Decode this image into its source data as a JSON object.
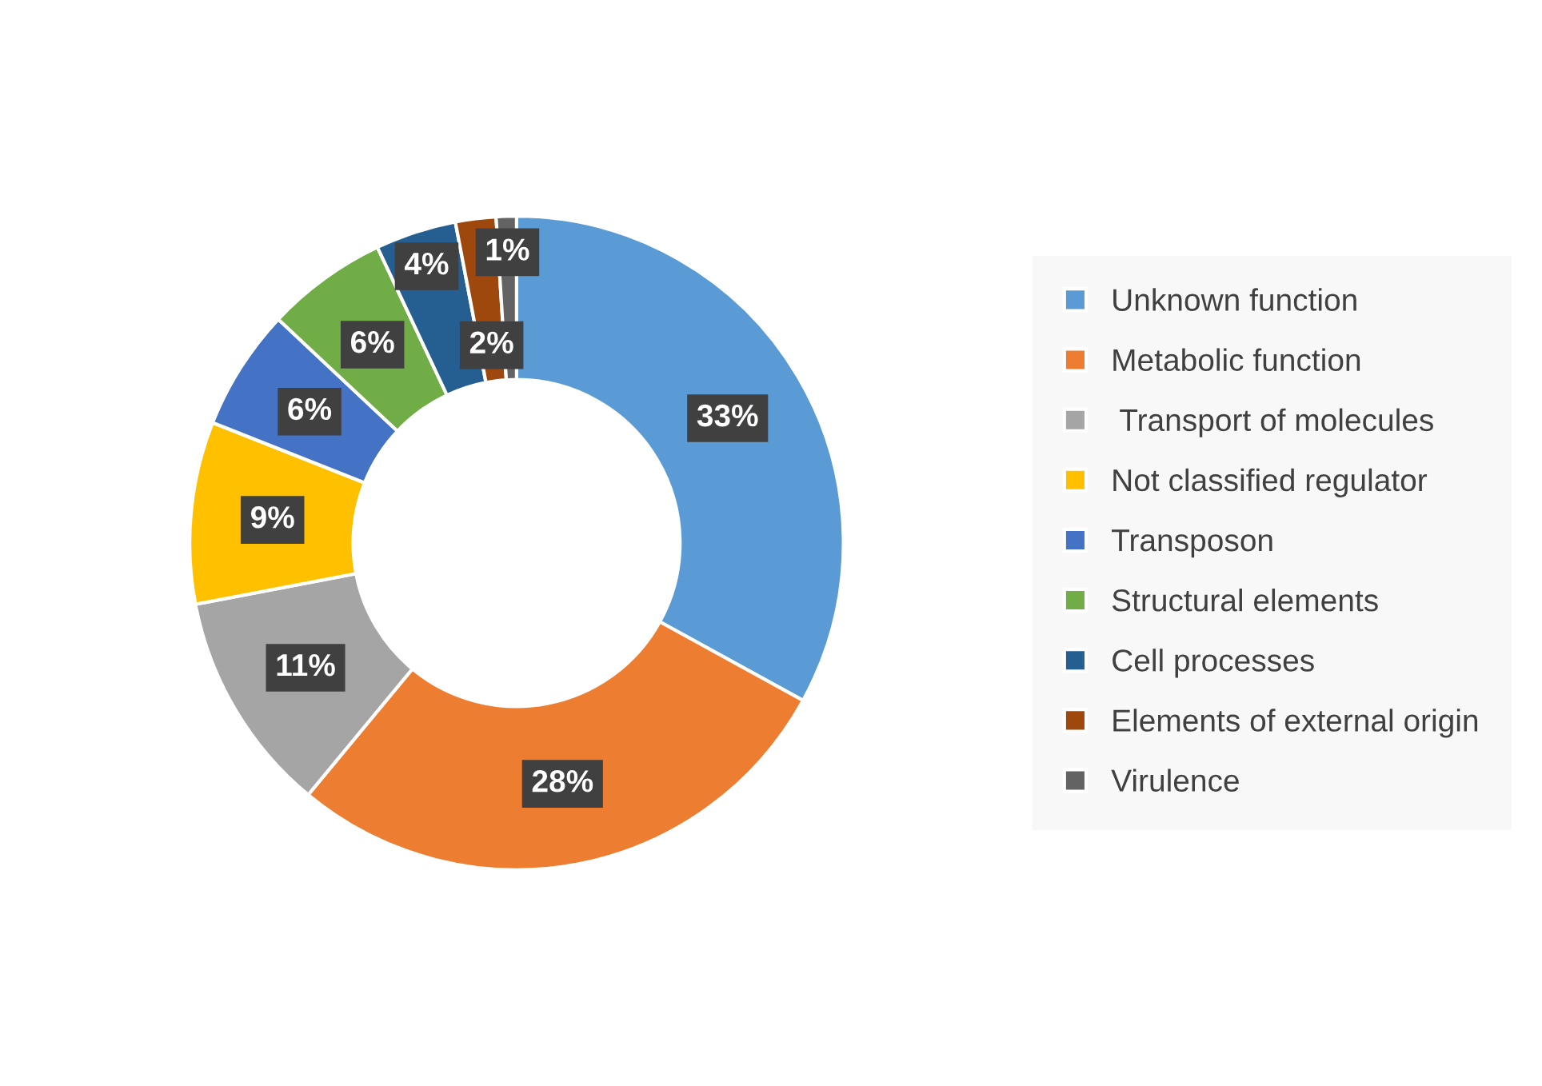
{
  "chart_data": {
    "type": "donut",
    "categories": [
      "Unknown function",
      "Metabolic function",
      " Transport of molecules",
      "Not classified regulator",
      "Transposon",
      "Structural elements",
      "Cell processes",
      "Elements of external origin",
      "Virulence"
    ],
    "values": [
      33,
      28,
      11,
      9,
      6,
      6,
      4,
      2,
      1
    ],
    "colors": [
      "#5b9bd5",
      "#ed7d31",
      "#a5a5a5",
      "#ffc000",
      "#4472c4",
      "#70ad47",
      "#255e91",
      "#9e480e",
      "#636363"
    ],
    "value_labels": [
      "33%",
      "28%",
      "11%",
      "9%",
      "6%",
      "6%",
      "4%",
      "2%",
      "1%"
    ],
    "legend": "right"
  }
}
